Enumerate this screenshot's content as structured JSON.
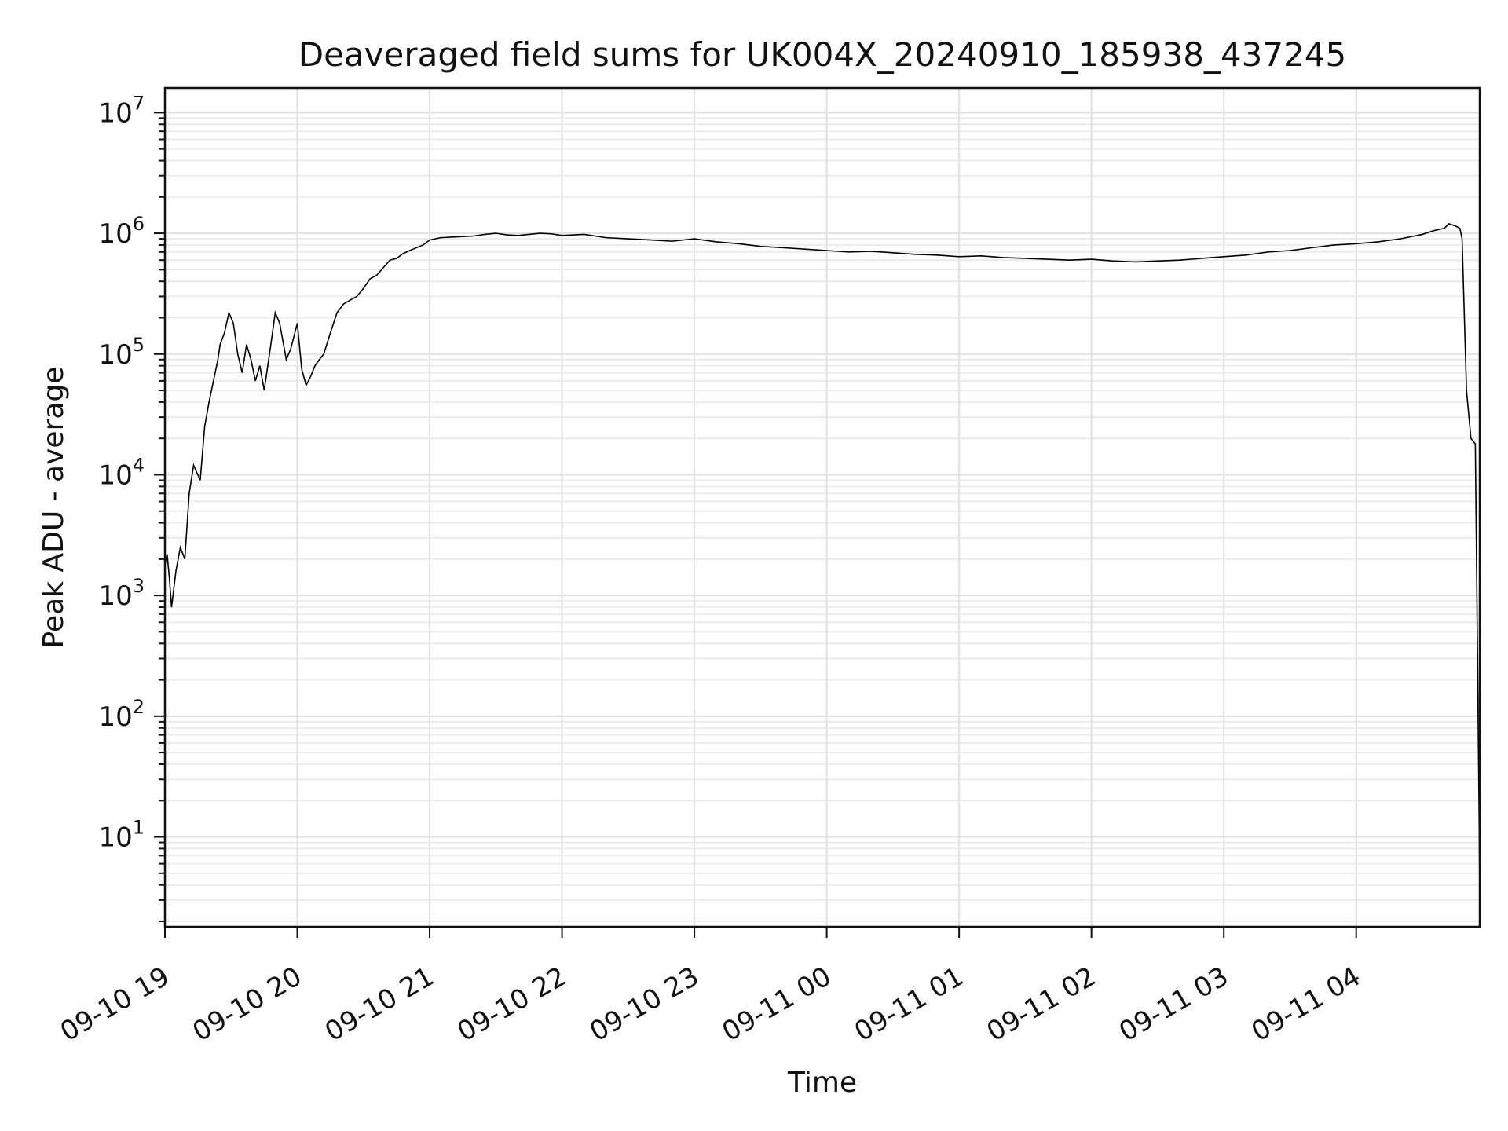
{
  "chart_data": {
    "type": "line",
    "title": "Deaveraged field sums for UK004X_20240910_185938_437245",
    "xlabel": "Time",
    "ylabel": "Peak ADU - average",
    "yscale": "log",
    "ylim": [
      1.8,
      16000000
    ],
    "xlim": [
      "2024-09-10 19:00",
      "2024-09-11 04:56"
    ],
    "grid": "both",
    "line_color": "#000000",
    "x_ticks": [
      {
        "label": "09-10 19",
        "time": "2024-09-10 19:00"
      },
      {
        "label": "09-10 20",
        "time": "2024-09-10 20:00"
      },
      {
        "label": "09-10 21",
        "time": "2024-09-10 21:00"
      },
      {
        "label": "09-10 22",
        "time": "2024-09-10 22:00"
      },
      {
        "label": "09-10 23",
        "time": "2024-09-10 23:00"
      },
      {
        "label": "09-11 00",
        "time": "2024-09-11 00:00"
      },
      {
        "label": "09-11 01",
        "time": "2024-09-11 01:00"
      },
      {
        "label": "09-11 02",
        "time": "2024-09-11 02:00"
      },
      {
        "label": "09-11 03",
        "time": "2024-09-11 03:00"
      },
      {
        "label": "09-11 04",
        "time": "2024-09-11 04:00"
      }
    ],
    "y_ticks": [
      {
        "base": "10",
        "exp": "1",
        "value": 10
      },
      {
        "base": "10",
        "exp": "2",
        "value": 100
      },
      {
        "base": "10",
        "exp": "3",
        "value": 1000
      },
      {
        "base": "10",
        "exp": "4",
        "value": 10000
      },
      {
        "base": "10",
        "exp": "5",
        "value": 100000
      },
      {
        "base": "10",
        "exp": "6",
        "value": 1000000
      },
      {
        "base": "10",
        "exp": "7",
        "value": 10000000
      }
    ],
    "series": [
      {
        "x": [
          "2024-09-10 19:00",
          "2024-09-10 19:01",
          "2024-09-10 19:02",
          "2024-09-10 19:03",
          "2024-09-10 19:05",
          "2024-09-10 19:07",
          "2024-09-10 19:09",
          "2024-09-10 19:11",
          "2024-09-10 19:13",
          "2024-09-10 19:16",
          "2024-09-10 19:18",
          "2024-09-10 19:20",
          "2024-09-10 19:22",
          "2024-09-10 19:24",
          "2024-09-10 19:25",
          "2024-09-10 19:27",
          "2024-09-10 19:29",
          "2024-09-10 19:31",
          "2024-09-10 19:33",
          "2024-09-10 19:35",
          "2024-09-10 19:37",
          "2024-09-10 19:39",
          "2024-09-10 19:41",
          "2024-09-10 19:43",
          "2024-09-10 19:45",
          "2024-09-10 19:48",
          "2024-09-10 19:50",
          "2024-09-10 19:52",
          "2024-09-10 19:55",
          "2024-09-10 19:57",
          "2024-09-10 20:00",
          "2024-09-10 20:02",
          "2024-09-10 20:04",
          "2024-09-10 20:06",
          "2024-09-10 20:08",
          "2024-09-10 20:10",
          "2024-09-10 20:12",
          "2024-09-10 20:15",
          "2024-09-10 20:18",
          "2024-09-10 20:21",
          "2024-09-10 20:24",
          "2024-09-10 20:27",
          "2024-09-10 20:30",
          "2024-09-10 20:33",
          "2024-09-10 20:36",
          "2024-09-10 20:39",
          "2024-09-10 20:42",
          "2024-09-10 20:45",
          "2024-09-10 20:48",
          "2024-09-10 20:51",
          "2024-09-10 20:54",
          "2024-09-10 20:57",
          "2024-09-10 21:00",
          "2024-09-10 21:05",
          "2024-09-10 21:10",
          "2024-09-10 21:15",
          "2024-09-10 21:20",
          "2024-09-10 21:25",
          "2024-09-10 21:30",
          "2024-09-10 21:35",
          "2024-09-10 21:40",
          "2024-09-10 21:45",
          "2024-09-10 21:50",
          "2024-09-10 21:55",
          "2024-09-10 22:00",
          "2024-09-10 22:10",
          "2024-09-10 22:20",
          "2024-09-10 22:30",
          "2024-09-10 22:40",
          "2024-09-10 22:50",
          "2024-09-10 23:00",
          "2024-09-10 23:10",
          "2024-09-10 23:20",
          "2024-09-10 23:30",
          "2024-09-10 23:40",
          "2024-09-10 23:50",
          "2024-09-11 00:00",
          "2024-09-11 00:10",
          "2024-09-11 00:20",
          "2024-09-11 00:30",
          "2024-09-11 00:40",
          "2024-09-11 00:50",
          "2024-09-11 01:00",
          "2024-09-11 01:10",
          "2024-09-11 01:20",
          "2024-09-11 01:30",
          "2024-09-11 01:40",
          "2024-09-11 01:50",
          "2024-09-11 02:00",
          "2024-09-11 02:10",
          "2024-09-11 02:20",
          "2024-09-11 02:30",
          "2024-09-11 02:40",
          "2024-09-11 02:50",
          "2024-09-11 03:00",
          "2024-09-11 03:10",
          "2024-09-11 03:20",
          "2024-09-11 03:30",
          "2024-09-11 03:40",
          "2024-09-11 03:50",
          "2024-09-11 04:00",
          "2024-09-11 04:10",
          "2024-09-11 04:20",
          "2024-09-11 04:30",
          "2024-09-11 04:35",
          "2024-09-11 04:40",
          "2024-09-11 04:42",
          "2024-09-11 04:45",
          "2024-09-11 04:47",
          "2024-09-11 04:48",
          "2024-09-11 04:50",
          "2024-09-11 04:52",
          "2024-09-11 04:54",
          "2024-09-11 04:55",
          "2024-09-11 04:56"
        ],
        "y": [
          1800,
          2200,
          1400,
          800,
          1600,
          2500,
          2000,
          7000,
          12000,
          9000,
          25000,
          40000,
          60000,
          90000,
          120000,
          150000,
          220000,
          180000,
          100000,
          70000,
          120000,
          90000,
          60000,
          80000,
          50000,
          120000,
          220000,
          180000,
          90000,
          110000,
          180000,
          75000,
          55000,
          65000,
          80000,
          90000,
          100000,
          150000,
          220000,
          260000,
          280000,
          300000,
          350000,
          420000,
          450000,
          520000,
          600000,
          620000,
          680000,
          720000,
          760000,
          800000,
          880000,
          920000,
          930000,
          940000,
          950000,
          980000,
          1000000,
          970000,
          960000,
          980000,
          1000000,
          990000,
          960000,
          980000,
          920000,
          900000,
          880000,
          860000,
          900000,
          850000,
          820000,
          780000,
          760000,
          740000,
          720000,
          700000,
          710000,
          690000,
          670000,
          660000,
          640000,
          650000,
          630000,
          620000,
          610000,
          600000,
          610000,
          590000,
          580000,
          590000,
          600000,
          620000,
          640000,
          660000,
          700000,
          720000,
          760000,
          800000,
          820000,
          850000,
          900000,
          980000,
          1050000,
          1100000,
          1200000,
          1150000,
          1100000,
          900000,
          50000,
          20000,
          18000,
          300,
          4
        ]
      }
    ]
  }
}
